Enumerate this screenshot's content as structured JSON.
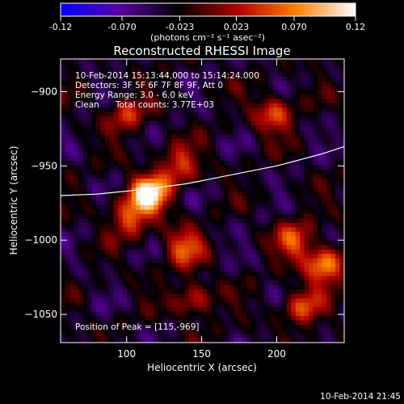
{
  "colorbar": {
    "ticks": [
      {
        "value": -0.12,
        "label": "-0.12"
      },
      {
        "value": -0.07,
        "label": "-0.070"
      },
      {
        "value": -0.023,
        "label": "-0.023"
      },
      {
        "value": 0.023,
        "label": "0.023"
      },
      {
        "value": 0.07,
        "label": "0.070"
      },
      {
        "value": 0.12,
        "label": "0.12"
      }
    ],
    "range": [
      -0.12,
      0.12
    ],
    "unit_label": "(photons cm⁻² s⁻¹ asec⁻²)"
  },
  "annotations": {
    "time_range": "10-Feb-2014 15:13:44.000 to 15:14:24.000",
    "detectors": "Detectors: 3F 5F 6F 7F 8F 9F, Att 0",
    "energy_range": "Energy Range: 3.0 - 6.0 keV",
    "clean": "Clean",
    "total_counts": "Total counts: 3.77E+03",
    "peak_position": "Position of Peak = [115,-969]"
  },
  "footer_timestamp": "10-Feb-2014 21:45",
  "chart_data": {
    "type": "heatmap",
    "title": "Reconstructed RHESSI Image",
    "xlabel": "Heliocentric X (arcsec)",
    "ylabel": "Heliocentric Y (arcsec)",
    "xlim": [
      56,
      245
    ],
    "ylim": [
      -1069,
      -878
    ],
    "xticks": [
      100,
      150,
      200
    ],
    "yticks": [
      -900,
      -950,
      -1000,
      -1050
    ],
    "colorscale": [
      "#0000ff",
      "#5a00a0",
      "#000000",
      "#b00000",
      "#ff8000",
      "#ffffff"
    ],
    "sources": [
      {
        "x": 115,
        "y": -969,
        "peak": 0.12
      },
      {
        "x": 102,
        "y": -985,
        "peak": 0.05
      },
      {
        "x": 138,
        "y": -1005,
        "peak": 0.055
      },
      {
        "x": 135,
        "y": -950,
        "peak": 0.045
      },
      {
        "x": 198,
        "y": -915,
        "peak": 0.05
      },
      {
        "x": 232,
        "y": -1017,
        "peak": 0.08
      },
      {
        "x": 212,
        "y": -1000,
        "peak": 0.05
      },
      {
        "x": 217,
        "y": -1045,
        "peak": 0.045
      },
      {
        "x": 145,
        "y": -1040,
        "peak": 0.035
      },
      {
        "x": 100,
        "y": -915,
        "peak": 0.035
      }
    ],
    "limb_curve": [
      {
        "x": 56,
        "y": -970
      },
      {
        "x": 80,
        "y": -969
      },
      {
        "x": 110,
        "y": -966
      },
      {
        "x": 140,
        "y": -962
      },
      {
        "x": 170,
        "y": -956
      },
      {
        "x": 200,
        "y": -950
      },
      {
        "x": 230,
        "y": -942
      },
      {
        "x": 245,
        "y": -937
      }
    ]
  }
}
